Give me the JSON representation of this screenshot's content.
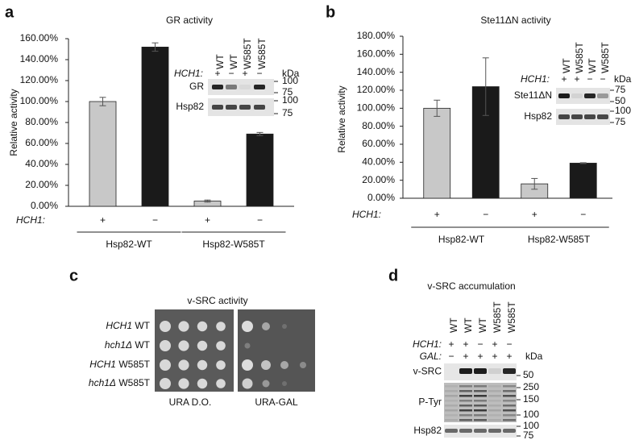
{
  "chart_data": [
    {
      "type": "bar",
      "panel": "a",
      "title": "GR activity",
      "y_label": "Relative activity",
      "categories": [
        "+",
        "−",
        "+",
        "−"
      ],
      "category_label": "HCH1:",
      "values": [
        100,
        152,
        5,
        69
      ],
      "errors": [
        4,
        4,
        1,
        1.5
      ],
      "colors": [
        "#c8c8c8",
        "#1a1a1a",
        "#c8c8c8",
        "#1a1a1a"
      ],
      "groups": [
        "Hsp82-WT",
        "Hsp82-W585T"
      ],
      "ylim": [
        0,
        160
      ],
      "yticks": [
        {
          "value": 0,
          "label": "0.00%"
        },
        {
          "value": 20,
          "label": "20.00%"
        },
        {
          "value": 40,
          "label": "40.00%"
        },
        {
          "value": 60,
          "label": "60.00%"
        },
        {
          "value": 80,
          "label": "80.00%"
        },
        {
          "value": 100,
          "label": "100.00%"
        },
        {
          "value": 120,
          "label": "120.00%"
        },
        {
          "value": 140,
          "label": "140.00%"
        },
        {
          "value": 160,
          "label": "160.00%"
        }
      ],
      "inset": {
        "columns": [
          "WT",
          "WT",
          "W585T",
          "W585T"
        ],
        "row_label": "HCH1:",
        "row_values": [
          "+",
          "−",
          "+",
          "−"
        ],
        "unit": "kDa",
        "blots": [
          {
            "name": "GR",
            "markers": [
              100,
              75
            ]
          },
          {
            "name": "Hsp82",
            "markers": [
              100,
              75
            ]
          }
        ]
      }
    },
    {
      "type": "bar",
      "panel": "b",
      "title": "Ste11ΔN activity",
      "y_label": "Relative activity",
      "categories": [
        "+",
        "−",
        "+",
        "−"
      ],
      "category_label": "HCH1:",
      "values": [
        100,
        124,
        16,
        39
      ],
      "errors": [
        9,
        32,
        6,
        0.5
      ],
      "colors": [
        "#c8c8c8",
        "#1a1a1a",
        "#c8c8c8",
        "#1a1a1a"
      ],
      "groups": [
        "Hsp82-WT",
        "Hsp82-W585T"
      ],
      "ylim": [
        0,
        180
      ],
      "yticks": [
        {
          "value": 0,
          "label": "0.00%"
        },
        {
          "value": 20,
          "label": "20.00%"
        },
        {
          "value": 40,
          "label": "40.00%"
        },
        {
          "value": 60,
          "label": "60.00%"
        },
        {
          "value": 80,
          "label": "80.00%"
        },
        {
          "value": 100,
          "label": "100.00%"
        },
        {
          "value": 120,
          "label": "120.00%"
        },
        {
          "value": 140,
          "label": "140.00%"
        },
        {
          "value": 160,
          "label": "160.00%"
        },
        {
          "value": 180,
          "label": "180.00%"
        }
      ],
      "inset": {
        "columns": [
          "WT",
          "W585T",
          "WT",
          "W585T"
        ],
        "row_label": "HCH1:",
        "row_values": [
          "+",
          "+",
          "−",
          "−"
        ],
        "unit": "kDa",
        "blots": [
          {
            "name": "Ste11ΔN",
            "markers": [
              75,
              50
            ]
          },
          {
            "name": "Hsp82",
            "markers": [
              100,
              75
            ]
          }
        ]
      }
    }
  ],
  "panel_c": {
    "letter": "c",
    "title": "v-SRC activity",
    "rows": [
      {
        "gene": "HCH1",
        "strain": "WT"
      },
      {
        "gene": "hch1Δ",
        "strain": "WT"
      },
      {
        "gene": "HCH1",
        "strain": "W585T"
      },
      {
        "gene": "hch1Δ",
        "strain": "W585T"
      }
    ],
    "plates": [
      "URA D.O.",
      "URA-GAL"
    ]
  },
  "panel_d": {
    "letter": "d",
    "title": "v-SRC accumulation",
    "columns": [
      "WT",
      "WT",
      "WT",
      "W585T",
      "W585T"
    ],
    "hch1_label": "HCH1:",
    "hch1": [
      "+",
      "+",
      "−",
      "+",
      "−"
    ],
    "gal_label": "GAL:",
    "gal": [
      "−",
      "+",
      "+",
      "+",
      "+"
    ],
    "unit": "kDa",
    "blots": [
      {
        "name": "v-SRC",
        "markers": [
          50
        ]
      },
      {
        "name": "P-Tyr",
        "markers": [
          250,
          150,
          100
        ]
      },
      {
        "name": "Hsp82",
        "markers": [
          100,
          75
        ]
      }
    ]
  }
}
